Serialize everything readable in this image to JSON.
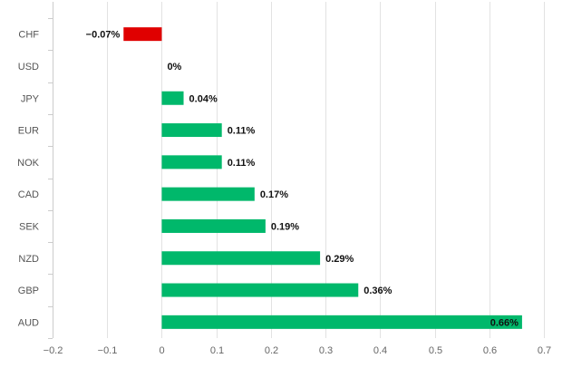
{
  "chart_data": {
    "type": "bar",
    "orientation": "horizontal",
    "title": "",
    "xlabel": "",
    "ylabel": "",
    "categories": [
      "CHF",
      "USD",
      "JPY",
      "EUR",
      "NOK",
      "CAD",
      "SEK",
      "NZD",
      "GBP",
      "AUD"
    ],
    "values": [
      -0.07,
      0,
      0.04,
      0.11,
      0.11,
      0.17,
      0.19,
      0.29,
      0.36,
      0.66
    ],
    "data_labels": [
      "−0.07%",
      "0%",
      "0.04%",
      "0.11%",
      "0.11%",
      "0.17%",
      "0.19%",
      "0.29%",
      "0.36%",
      "0.66%"
    ],
    "xlim": [
      -0.2,
      0.7
    ],
    "xticks": [
      -0.2,
      -0.1,
      0,
      0.1,
      0.2,
      0.3,
      0.4,
      0.5,
      0.6,
      0.7
    ],
    "xtick_labels": [
      "−0.2",
      "−0.1",
      "0",
      "0.1",
      "0.2",
      "0.3",
      "0.4",
      "0.5",
      "0.6",
      "0.7"
    ],
    "grid": true,
    "legend": "none",
    "colors": {
      "positive": "#00b86b",
      "negative": "#e00000"
    }
  }
}
